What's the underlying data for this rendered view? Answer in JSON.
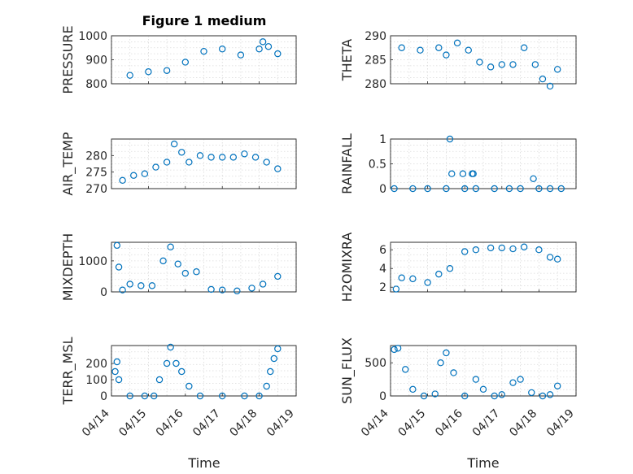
{
  "figure": {
    "title": "Figure 1 medium",
    "marker_color": "#0072BD",
    "time_ticks": [
      "04/14",
      "04/15",
      "04/16",
      "04/17",
      "04/18",
      "04/19"
    ]
  },
  "chart_data": [
    {
      "id": "pressure",
      "type": "scatter",
      "ylabel": "PRESSURE",
      "ylim": [
        800,
        1000
      ],
      "yticks": [
        800,
        900,
        1000
      ],
      "ytick_labels": [
        "800",
        "900",
        "1000"
      ],
      "xlim": [
        0,
        5
      ],
      "grid": true,
      "show_xticklabels": false,
      "x": [
        0.5,
        1.0,
        1.5,
        2.0,
        2.5,
        3.0,
        3.5,
        4.0,
        4.1,
        4.25,
        4.5
      ],
      "y": [
        835,
        850,
        855,
        890,
        935,
        945,
        920,
        945,
        975,
        955,
        925
      ]
    },
    {
      "id": "theta",
      "type": "scatter",
      "ylabel": "THETA",
      "ylim": [
        280,
        290
      ],
      "yticks": [
        280,
        285,
        290
      ],
      "ytick_labels": [
        "280",
        "285",
        "290"
      ],
      "xlim": [
        0,
        5
      ],
      "grid": true,
      "show_xticklabels": false,
      "x": [
        0.3,
        0.8,
        1.3,
        1.5,
        1.8,
        2.1,
        2.4,
        2.7,
        3.0,
        3.3,
        3.6,
        3.9,
        4.1,
        4.3,
        4.5
      ],
      "y": [
        287.5,
        287,
        287.5,
        286,
        288.5,
        287,
        284.5,
        283.5,
        284,
        284,
        287.5,
        284,
        281,
        279.5,
        283
      ]
    },
    {
      "id": "air_temp",
      "type": "scatter",
      "ylabel": "AIR_TEMP",
      "ylim": [
        270,
        285
      ],
      "yticks": [
        270,
        275,
        280
      ],
      "ytick_labels": [
        "270",
        "275",
        "280"
      ],
      "xlim": [
        0,
        5
      ],
      "grid": true,
      "show_xticklabels": false,
      "x": [
        0.3,
        0.6,
        0.9,
        1.2,
        1.5,
        1.7,
        1.9,
        2.1,
        2.4,
        2.7,
        3.0,
        3.3,
        3.6,
        3.9,
        4.2,
        4.5
      ],
      "y": [
        272.5,
        274,
        274.5,
        276.5,
        278,
        283.5,
        281,
        278,
        280,
        279.5,
        279.5,
        279.5,
        280.5,
        279.5,
        278,
        276
      ]
    },
    {
      "id": "rainfall",
      "type": "scatter",
      "ylabel": "RAINFALL",
      "ylim": [
        0,
        1
      ],
      "yticks": [
        0,
        0.5,
        1
      ],
      "ytick_labels": [
        "0",
        "0.5",
        "1"
      ],
      "xlim": [
        0,
        5
      ],
      "grid": true,
      "show_xticklabels": false,
      "x": [
        0.1,
        0.6,
        1.0,
        1.5,
        2.0,
        2.3,
        2.8,
        3.2,
        3.5,
        4.0,
        4.3,
        4.6,
        1.6,
        1.65,
        1.95,
        2.2,
        2.23,
        3.85
      ],
      "y": [
        0,
        0,
        0,
        0,
        0,
        0,
        0,
        0,
        0,
        0,
        0,
        0,
        1.0,
        0.3,
        0.3,
        0.3,
        0.3,
        0.2
      ]
    },
    {
      "id": "mixdepth",
      "type": "scatter",
      "ylabel": "MIXDEPTH",
      "ylim": [
        0,
        1600
      ],
      "yticks": [
        0,
        1000
      ],
      "ytick_labels": [
        "0",
        "1000"
      ],
      "xlim": [
        0,
        5
      ],
      "grid": true,
      "show_xticklabels": false,
      "x": [
        0.15,
        0.2,
        0.3,
        0.5,
        0.8,
        1.1,
        1.4,
        1.6,
        1.8,
        2.0,
        2.3,
        2.7,
        3.0,
        3.4,
        3.8,
        4.1,
        4.5
      ],
      "y": [
        1500,
        800,
        60,
        250,
        200,
        200,
        1000,
        1450,
        900,
        600,
        650,
        80,
        60,
        30,
        120,
        250,
        500
      ]
    },
    {
      "id": "h2omixra",
      "type": "scatter",
      "ylabel": "H2OMIXRA",
      "ylim": [
        1.5,
        6.8
      ],
      "yticks": [
        2,
        4,
        6
      ],
      "ytick_labels": [
        "2",
        "4",
        "6"
      ],
      "xlim": [
        0,
        5
      ],
      "grid": true,
      "show_xticklabels": false,
      "x": [
        0.15,
        0.3,
        0.6,
        1.0,
        1.3,
        1.6,
        2.0,
        2.3,
        2.7,
        3.0,
        3.3,
        3.6,
        4.0,
        4.3,
        4.5
      ],
      "y": [
        1.8,
        3.0,
        2.9,
        2.5,
        3.4,
        4.0,
        5.8,
        6.0,
        6.2,
        6.2,
        6.1,
        6.3,
        6.0,
        5.2,
        5.0
      ]
    },
    {
      "id": "terr_msl",
      "type": "scatter",
      "ylabel": "TERR_MSL",
      "ylim": [
        0,
        310
      ],
      "yticks": [
        0,
        100,
        200
      ],
      "ytick_labels": [
        "0",
        "100",
        "200"
      ],
      "xlim": [
        0,
        5
      ],
      "grid": true,
      "show_xticklabels": true,
      "x": [
        0.1,
        0.15,
        0.2,
        0.5,
        0.9,
        1.15,
        1.3,
        1.5,
        1.6,
        1.75,
        1.9,
        2.1,
        2.4,
        3.0,
        3.6,
        4.0,
        4.2,
        4.3,
        4.4,
        4.5
      ],
      "y": [
        150,
        210,
        100,
        0,
        0,
        0,
        100,
        200,
        300,
        200,
        150,
        60,
        0,
        0,
        0,
        0,
        60,
        150,
        230,
        290
      ]
    },
    {
      "id": "sun_flux",
      "type": "scatter",
      "ylabel": "SUN_FLUX",
      "ylim": [
        0,
        760
      ],
      "yticks": [
        0,
        500
      ],
      "ytick_labels": [
        "0",
        "500"
      ],
      "xlim": [
        0,
        5
      ],
      "grid": true,
      "show_xticklabels": true,
      "x": [
        0.1,
        0.2,
        0.4,
        0.6,
        0.9,
        1.2,
        1.35,
        1.5,
        1.7,
        2.0,
        2.3,
        2.5,
        2.8,
        3.0,
        3.3,
        3.5,
        3.8,
        4.1,
        4.3,
        4.5
      ],
      "y": [
        700,
        720,
        400,
        100,
        0,
        30,
        500,
        650,
        350,
        0,
        250,
        100,
        0,
        20,
        200,
        250,
        50,
        0,
        20,
        150
      ]
    }
  ],
  "xlabel": "Time"
}
